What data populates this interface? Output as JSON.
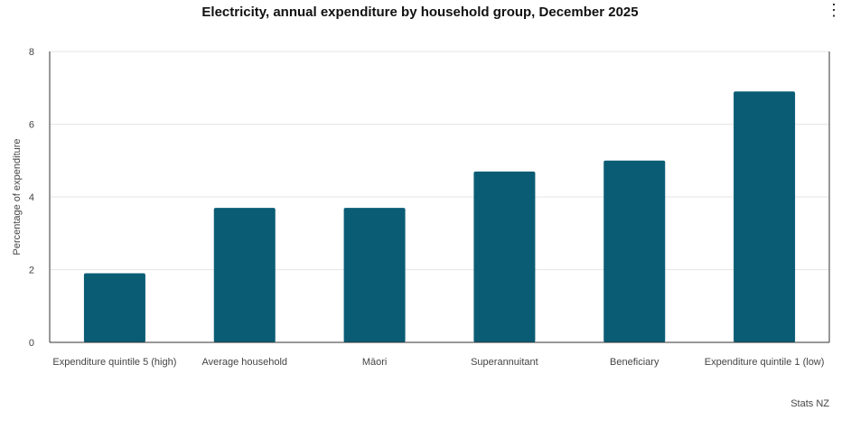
{
  "title": "Electricity, annual expenditure by household group, December 2025",
  "menu_icon": "vertical-ellipsis-icon",
  "source": "Stats NZ",
  "colors": {
    "bar": "#0a5c75",
    "grid": "#e6e6e6",
    "axis": "#333333"
  },
  "chart_data": {
    "type": "bar",
    "title": "Electricity, annual expenditure by household group, December 2025",
    "xlabel": "",
    "ylabel": "Percentage of expenditure",
    "ylim": [
      0,
      8
    ],
    "yticks": [
      "0",
      "2",
      "4",
      "6",
      "8"
    ],
    "grid": true,
    "categories": [
      "Expenditure quintile 5 (high)",
      "Average household",
      "Māori",
      "Superannuitant",
      "Beneficiary",
      "Expenditure quintile 1 (low)"
    ],
    "values": [
      1.9,
      3.7,
      3.7,
      4.7,
      5.0,
      6.9
    ]
  }
}
